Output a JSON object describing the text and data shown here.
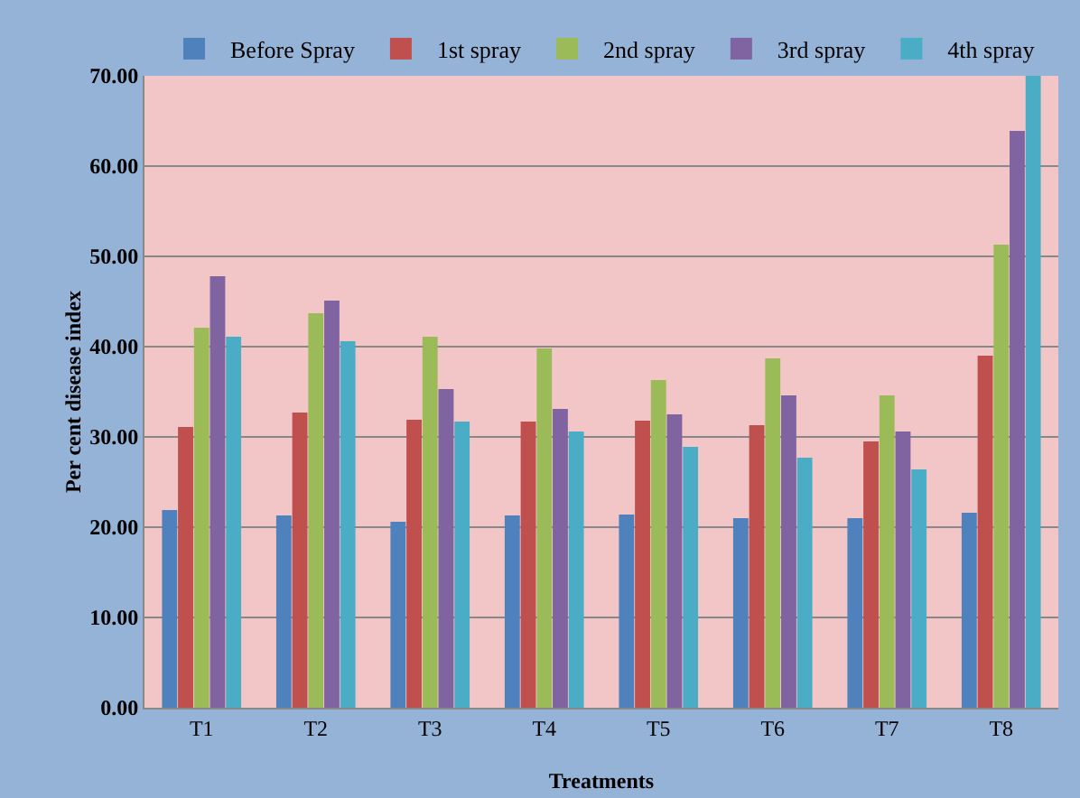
{
  "chart_data": {
    "type": "bar",
    "xlabel": "Treatments",
    "ylabel": "Per cent disease index",
    "categories": [
      "T1",
      "T2",
      "T3",
      "T4",
      "T5",
      "T6",
      "T7",
      "T8"
    ],
    "series": [
      {
        "name": "Before Spray",
        "color": "#4f81bd",
        "values": [
          21.9,
          21.3,
          20.6,
          21.3,
          21.4,
          21.0,
          21.0,
          21.6
        ]
      },
      {
        "name": "1st spray",
        "color": "#c0504d",
        "values": [
          31.1,
          32.7,
          31.9,
          31.7,
          31.8,
          31.3,
          29.5,
          39.0
        ]
      },
      {
        "name": "2nd spray",
        "color": "#9bbb59",
        "values": [
          42.1,
          43.7,
          41.1,
          39.8,
          36.3,
          38.7,
          34.6,
          51.3
        ]
      },
      {
        "name": "3rd spray",
        "color": "#8064a2",
        "values": [
          47.8,
          45.1,
          35.3,
          33.1,
          32.5,
          34.6,
          30.6,
          63.9
        ]
      },
      {
        "name": "4th spray",
        "color": "#4bacc6",
        "values": [
          41.1,
          40.6,
          31.7,
          30.6,
          28.9,
          27.7,
          26.4,
          70.0
        ]
      }
    ],
    "ylim": [
      0,
      70
    ],
    "yticks": [
      {
        "value": 0,
        "label": "0.00"
      },
      {
        "value": 10,
        "label": "10.00"
      },
      {
        "value": 20,
        "label": "20.00"
      },
      {
        "value": 30,
        "label": "30.00"
      },
      {
        "value": 40,
        "label": "40.00"
      },
      {
        "value": 50,
        "label": "50.00"
      },
      {
        "value": 60,
        "label": "60.00"
      },
      {
        "value": 70,
        "label": "70.00"
      }
    ],
    "grid": "y",
    "legend": "top"
  }
}
